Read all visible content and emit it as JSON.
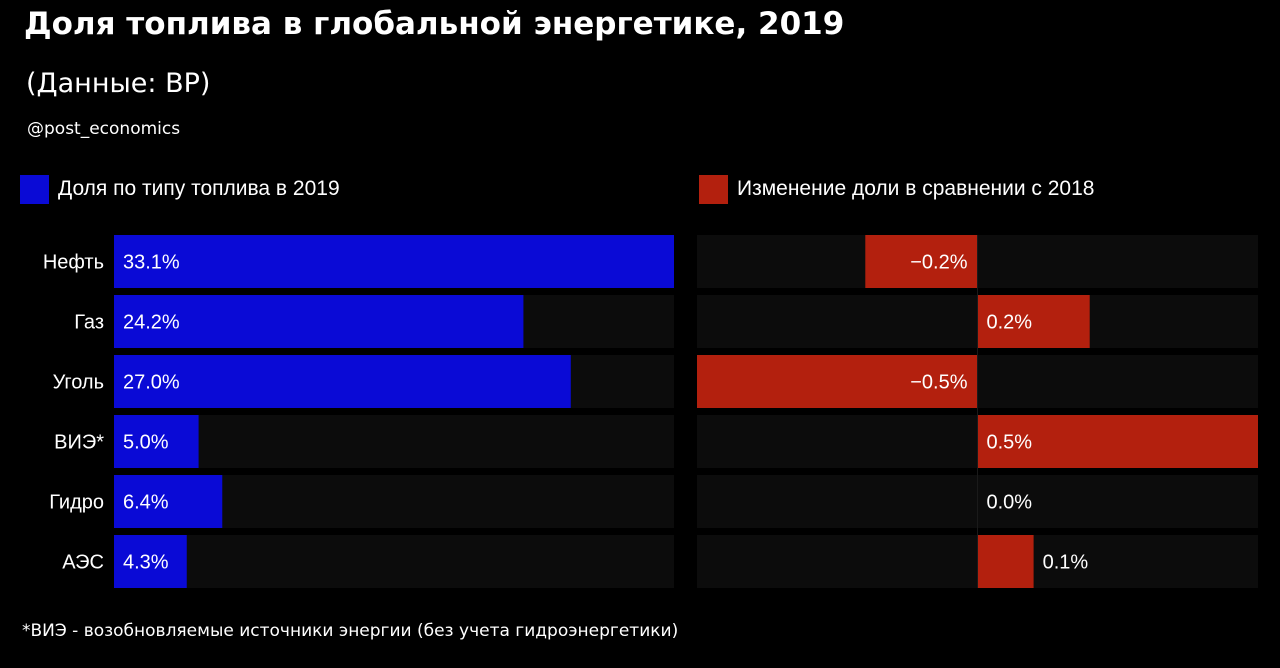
{
  "header": {
    "title": "Доля топлива в глобальной энергетике, 2019",
    "subtitle": "(Данные: BP)",
    "handle": "@post_economics"
  },
  "legend": {
    "share_label": "Доля по типу топлива в 2019",
    "change_label": "Изменение доли в сравнении с 2018"
  },
  "colors": {
    "share": "#0a0ad6",
    "change": "#b3200e",
    "track": "#0c0c0c",
    "background": "#000000"
  },
  "footnote": "*ВИЭ - возобновляемые источники энергии (без учета гидроэнергетики)",
  "chart_data": [
    {
      "type": "bar",
      "orientation": "horizontal",
      "categories": [
        "Нефть",
        "Газ",
        "Уголь",
        "ВИЭ*",
        "Гидро",
        "АЭС"
      ],
      "series": [
        {
          "name": "Доля по типу топлива в 2019",
          "values": [
            33.1,
            24.2,
            27.0,
            5.0,
            6.4,
            4.3
          ],
          "labels": [
            "33.1%",
            "24.2%",
            "27.0%",
            "5.0%",
            "6.4%",
            "4.3%"
          ]
        }
      ],
      "xlim": [
        0,
        33.1
      ]
    },
    {
      "type": "bar",
      "orientation": "horizontal",
      "categories": [
        "Нефть",
        "Газ",
        "Уголь",
        "ВИЭ*",
        "Гидро",
        "АЭС"
      ],
      "series": [
        {
          "name": "Изменение доли в сравнении с 2018",
          "values": [
            -0.2,
            0.2,
            -0.5,
            0.5,
            0.0,
            0.1
          ],
          "labels": [
            "−0.2%",
            "0.2%",
            "−0.5%",
            "0.5%",
            "0.0%",
            "0.1%"
          ]
        }
      ],
      "xlim": [
        -0.5,
        0.5
      ]
    }
  ]
}
